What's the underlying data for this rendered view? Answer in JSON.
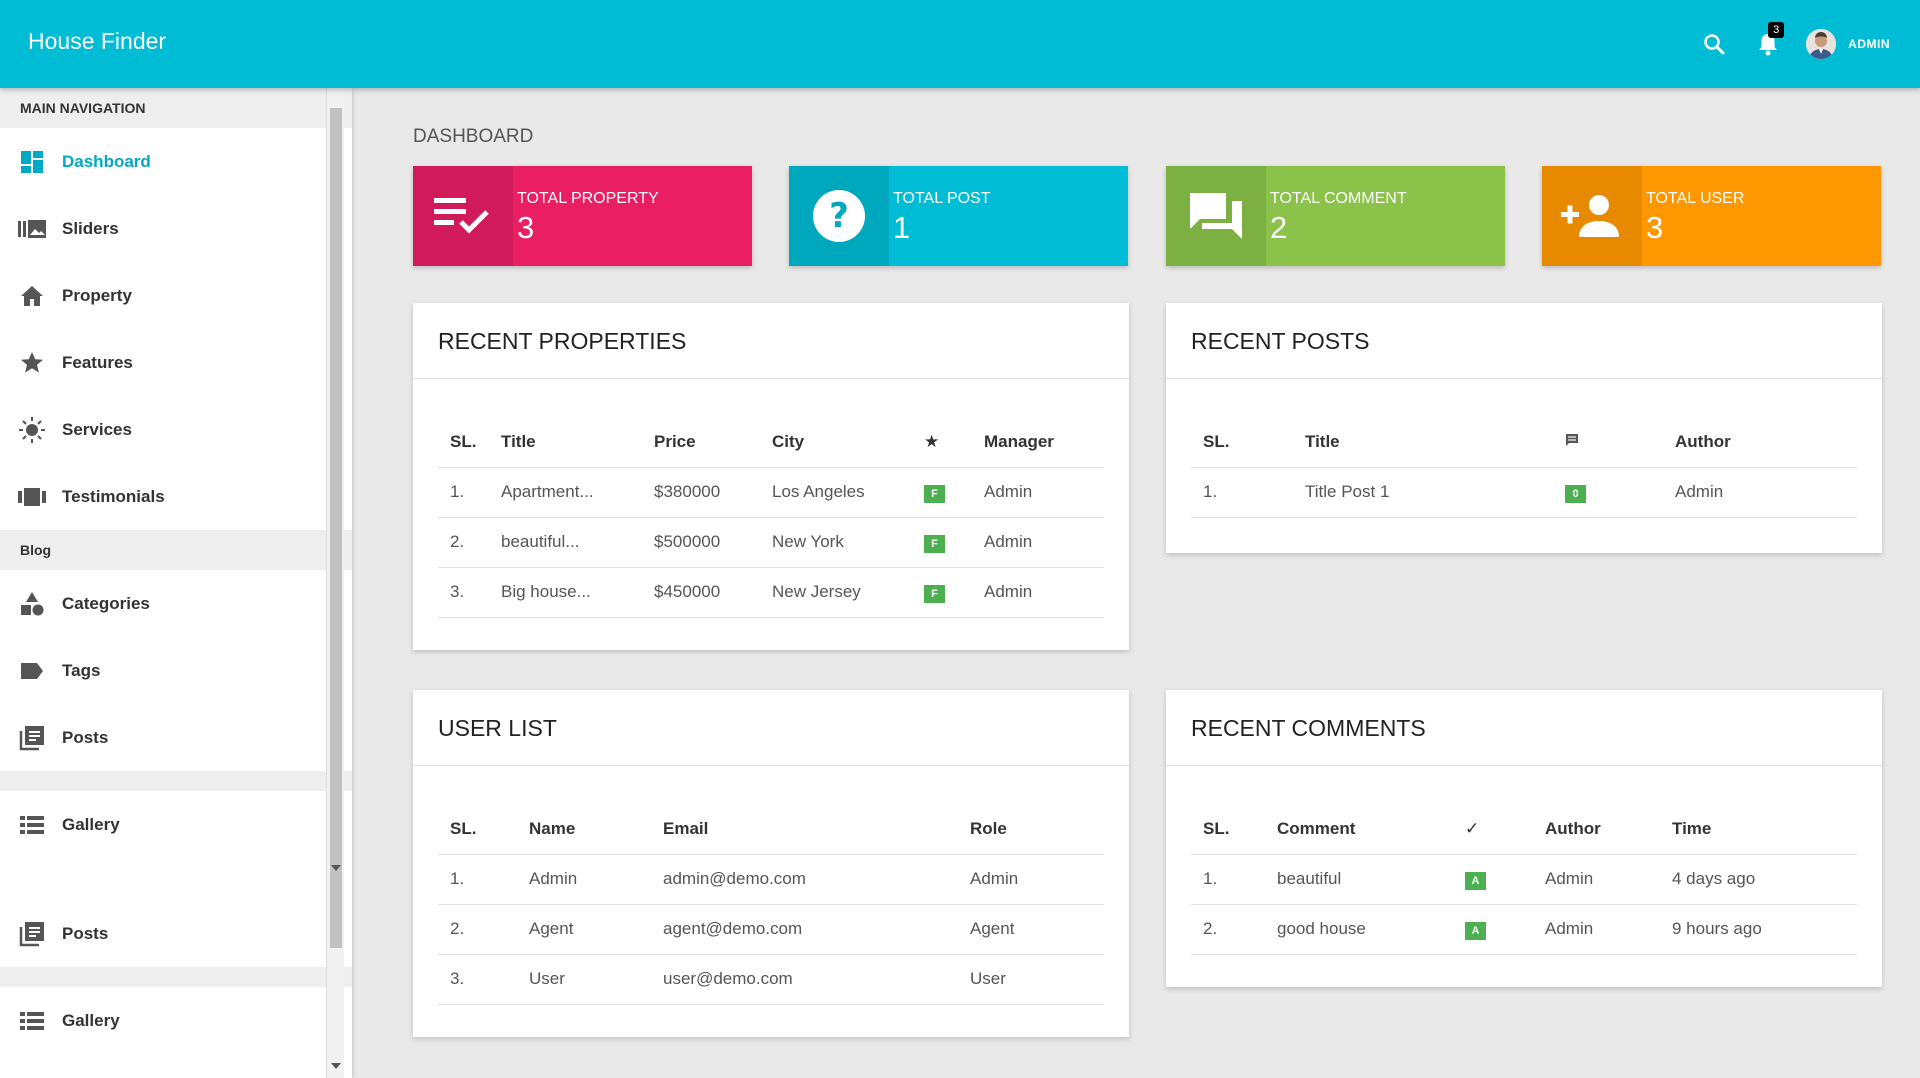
{
  "app": {
    "title": "House Finder"
  },
  "header": {
    "notification_count": "3",
    "user_label": "ADMIN"
  },
  "sidebar": {
    "section_main": "MAIN NAVIGATION",
    "section_blog": "Blog",
    "items": [
      {
        "label": "Dashboard",
        "icon": "dashboard-icon"
      },
      {
        "label": "Sliders",
        "icon": "slider-icon"
      },
      {
        "label": "Property",
        "icon": "home-icon"
      },
      {
        "label": "Features",
        "icon": "star-icon"
      },
      {
        "label": "Services",
        "icon": "sun-icon"
      },
      {
        "label": "Testimonials",
        "icon": "carousel-icon"
      }
    ],
    "blog_items": [
      {
        "label": "Categories",
        "icon": "category-icon"
      },
      {
        "label": "Tags",
        "icon": "tag-icon"
      },
      {
        "label": "Posts",
        "icon": "posts-icon"
      }
    ],
    "extra_items": [
      {
        "label": "Gallery",
        "icon": "list-icon"
      },
      {
        "label": "Posts",
        "icon": "posts-icon"
      },
      {
        "label": "Gallery",
        "icon": "list-icon"
      }
    ]
  },
  "page": {
    "title": "DASHBOARD"
  },
  "stats": [
    {
      "label": "TOTAL PROPERTY",
      "value": "3",
      "color": "#e91e63",
      "dark": "#d01a59"
    },
    {
      "label": "TOTAL POST",
      "value": "1",
      "color": "#00bcd4",
      "dark": "#00a8be"
    },
    {
      "label": "TOTAL COMMENT",
      "value": "2",
      "color": "#8bc34a",
      "dark": "#7db043"
    },
    {
      "label": "TOTAL USER",
      "value": "3",
      "color": "#ff9800",
      "dark": "#e88a00"
    }
  ],
  "recent_properties": {
    "title": "RECENT PROPERTIES",
    "headers": {
      "sl": "SL.",
      "title": "Title",
      "price": "Price",
      "city": "City",
      "star": "★",
      "manager": "Manager"
    },
    "rows": [
      {
        "sl": "1.",
        "title": "Apartment...",
        "price": "$380000",
        "city": "Los Angeles",
        "badge": "F",
        "manager": "Admin"
      },
      {
        "sl": "2.",
        "title": "beautiful...",
        "price": "$500000",
        "city": "New York",
        "badge": "F",
        "manager": "Admin"
      },
      {
        "sl": "3.",
        "title": "Big house...",
        "price": "$450000",
        "city": "New Jersey",
        "badge": "F",
        "manager": "Admin"
      }
    ]
  },
  "recent_posts": {
    "title": "RECENT POSTS",
    "headers": {
      "sl": "SL.",
      "title": "Title",
      "author": "Author"
    },
    "rows": [
      {
        "sl": "1.",
        "title": "Title Post 1",
        "badge": "0",
        "author": "Admin"
      }
    ]
  },
  "user_list": {
    "title": "USER LIST",
    "headers": {
      "sl": "SL.",
      "name": "Name",
      "email": "Email",
      "role": "Role"
    },
    "rows": [
      {
        "sl": "1.",
        "name": "Admin",
        "email": "admin@demo.com",
        "role": "Admin"
      },
      {
        "sl": "2.",
        "name": "Agent",
        "email": "agent@demo.com",
        "role": "Agent"
      },
      {
        "sl": "3.",
        "name": "User",
        "email": "user@demo.com",
        "role": "User"
      }
    ]
  },
  "recent_comments": {
    "title": "RECENT COMMENTS",
    "headers": {
      "sl": "SL.",
      "comment": "Comment",
      "check": "✓",
      "author": "Author",
      "time": "Time"
    },
    "rows": [
      {
        "sl": "1.",
        "comment": "beautiful",
        "badge": "A",
        "author": "Admin",
        "time": "4 days ago"
      },
      {
        "sl": "2.",
        "comment": "good house",
        "badge": "A",
        "author": "Admin",
        "time": "9 hours ago"
      }
    ]
  }
}
